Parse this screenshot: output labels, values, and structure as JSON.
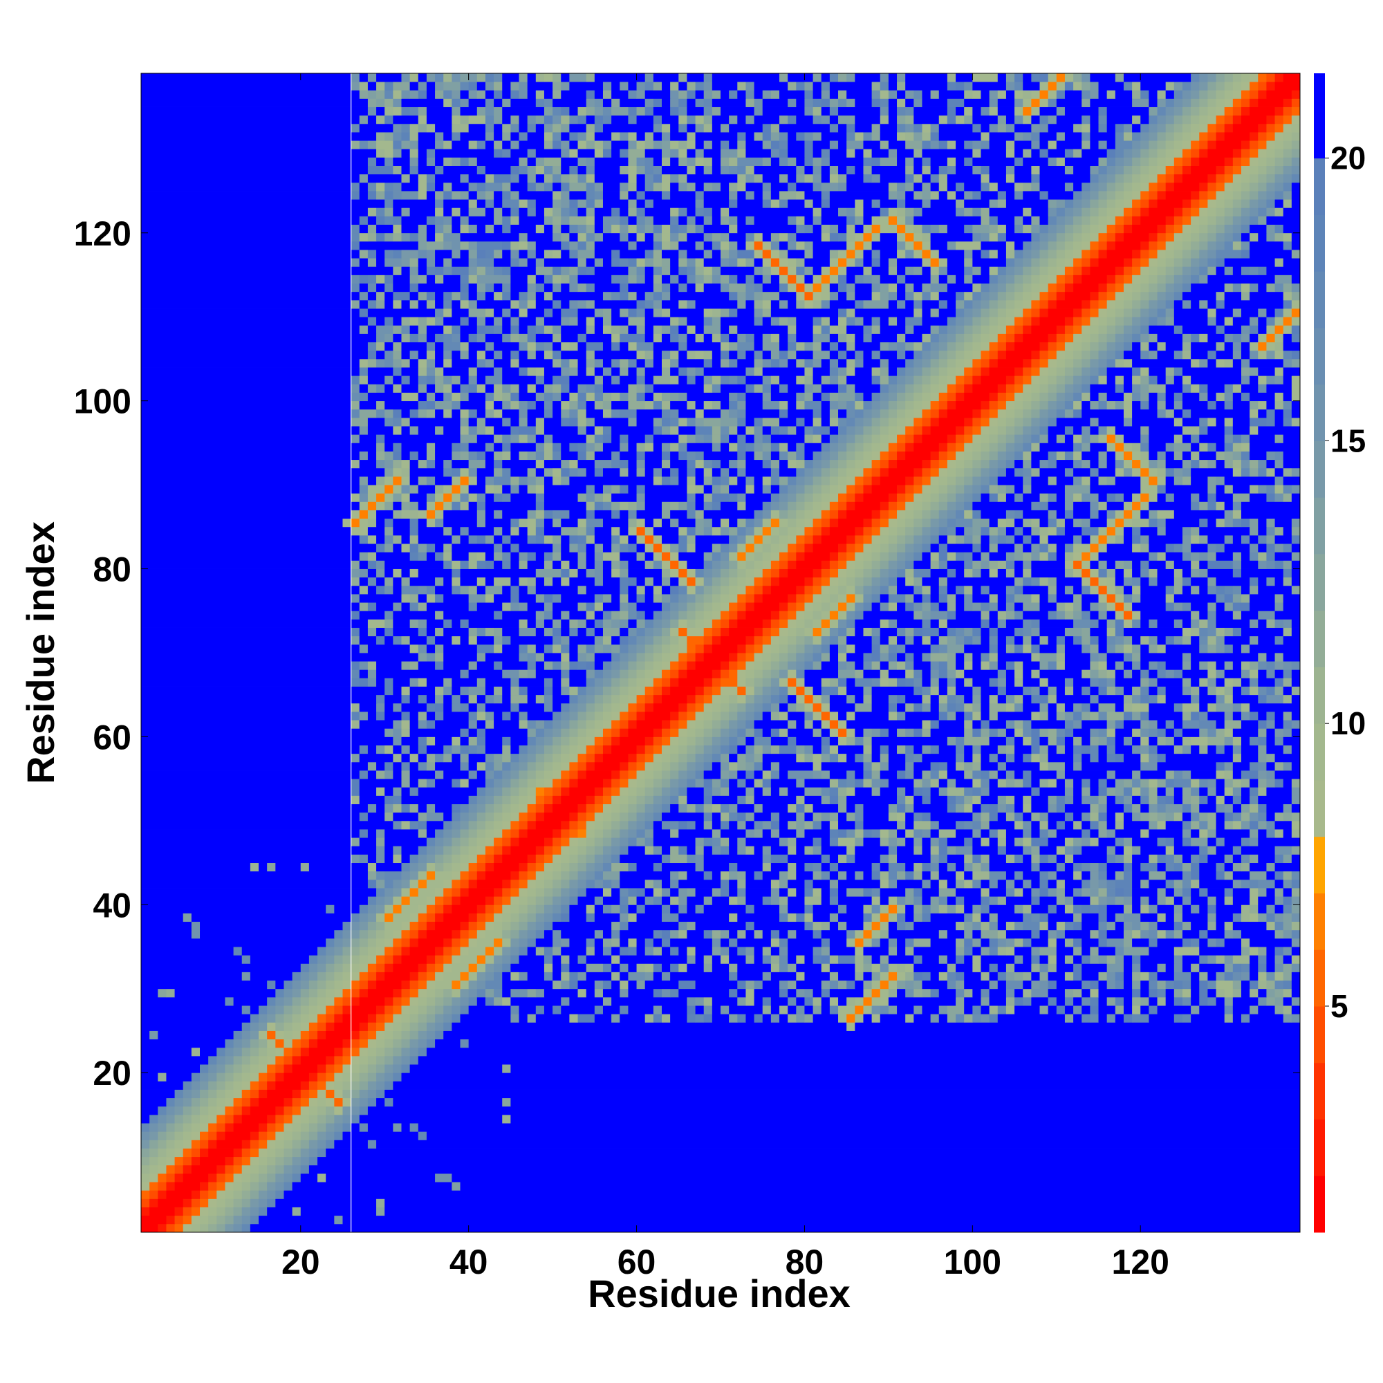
{
  "chart_data": {
    "type": "heatmap",
    "title": "",
    "xlabel": "Residue index",
    "ylabel": "Residue index",
    "n_residues": 138,
    "xlim": [
      1,
      138
    ],
    "ylim": [
      1,
      138
    ],
    "x_ticks": [
      20,
      40,
      60,
      80,
      100,
      120
    ],
    "y_ticks": [
      20,
      40,
      60,
      80,
      100,
      120
    ],
    "colorbar": {
      "range": [
        1,
        21.5
      ],
      "ticks": [
        5,
        10,
        15,
        20
      ],
      "levels": [
        {
          "upper": 2,
          "color": "#ff0000"
        },
        {
          "upper": 3,
          "color": "#ff1a00"
        },
        {
          "upper": 4,
          "color": "#ff3300"
        },
        {
          "upper": 5,
          "color": "#ff4d00"
        },
        {
          "upper": 6,
          "color": "#ff6600"
        },
        {
          "upper": 7,
          "color": "#ff8000"
        },
        {
          "upper": 8,
          "color": "#ffa500"
        },
        {
          "upper": 9,
          "color": "#a8b98c"
        },
        {
          "upper": 10,
          "color": "#a3b88e"
        },
        {
          "upper": 11,
          "color": "#9db491"
        },
        {
          "upper": 12,
          "color": "#93ad97"
        },
        {
          "upper": 13,
          "color": "#89a69d"
        },
        {
          "upper": 14,
          "color": "#80a0a3"
        },
        {
          "upper": 15,
          "color": "#7899a9"
        },
        {
          "upper": 16,
          "color": "#7093ae"
        },
        {
          "upper": 17,
          "color": "#698eb2"
        },
        {
          "upper": 18,
          "color": "#6389b5"
        },
        {
          "upper": 19,
          "color": "#5d84b8"
        },
        {
          "upper": 20,
          "color": "#5a80ba"
        },
        {
          "upper": 21.5,
          "color": "#0000ff"
        }
      ]
    },
    "diagonal_band_color": "#ff0000",
    "background_value": 21.5,
    "contact_features": [
      {
        "type": "antiparallel",
        "a": 20,
        "b": 20,
        "length": 5,
        "value": 6
      },
      {
        "type": "antiparallel",
        "a": 67,
        "b": 70,
        "length": 6,
        "value": 6
      },
      {
        "type": "antiparallel",
        "a": 60,
        "b": 84,
        "length": 7,
        "value": 6
      },
      {
        "type": "antiparallel",
        "a": 48,
        "b": 53,
        "length": 6,
        "value": 7
      },
      {
        "type": "antiparallel",
        "a": 112,
        "b": 80,
        "length": 7,
        "value": 6
      },
      {
        "type": "antiparallel",
        "a": 116,
        "b": 95,
        "length": 6,
        "value": 7
      },
      {
        "type": "parallel",
        "a": 80,
        "b": 112,
        "length": 9,
        "value": 7
      },
      {
        "type": "parallel",
        "a": 106,
        "b": 134,
        "length": 6,
        "value": 7
      },
      {
        "type": "parallel",
        "a": 30,
        "b": 38,
        "length": 6,
        "value": 7
      },
      {
        "type": "parallel",
        "a": 86,
        "b": 35,
        "length": 5,
        "value": 7
      },
      {
        "type": "parallel",
        "a": 26,
        "b": 85,
        "length": 6,
        "value": 7
      },
      {
        "type": "parallel",
        "a": 72,
        "b": 81,
        "length": 5,
        "value": 7
      }
    ],
    "folded_region_start": 26
  }
}
